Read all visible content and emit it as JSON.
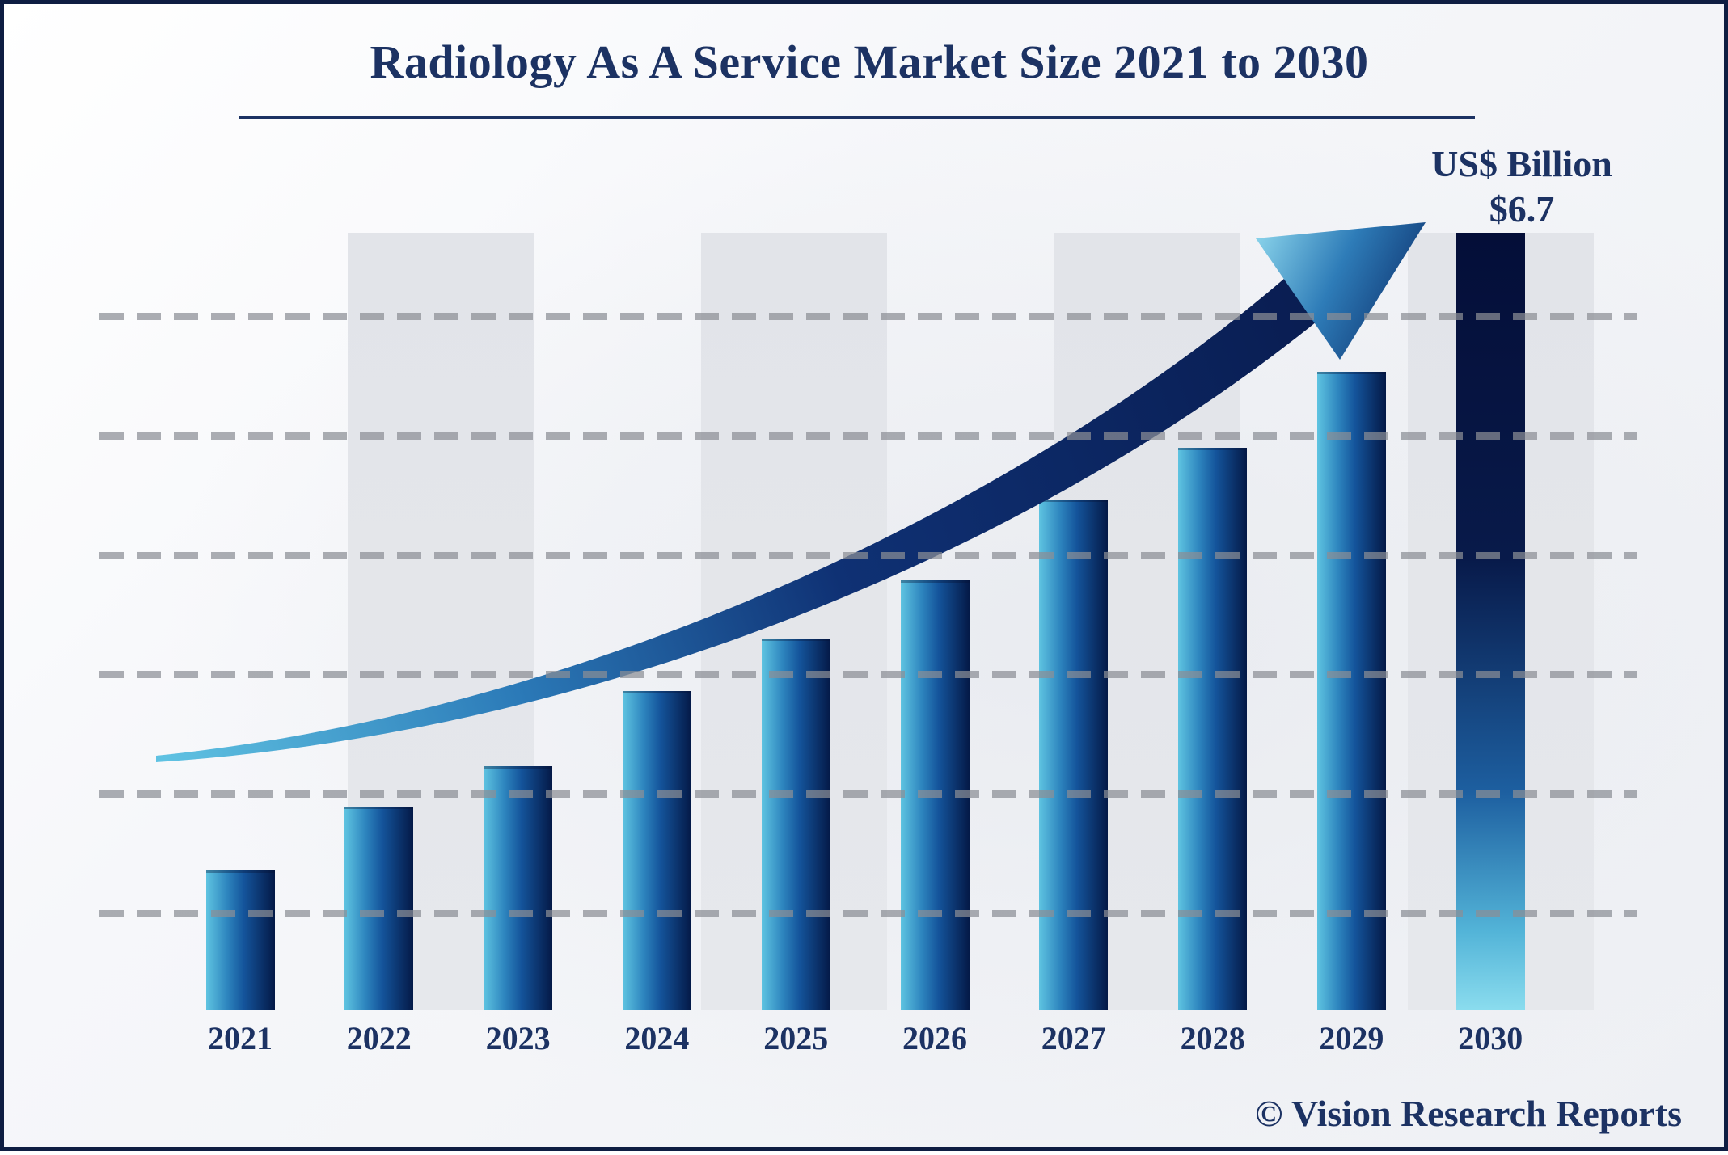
{
  "header": {
    "title": "Radiology As A Service Market Size 2021 to 2030"
  },
  "unit_label": {
    "line1": "US$ Billion",
    "line2": "$6.7"
  },
  "watermark": "© Vision Research Reports",
  "chart_data": {
    "type": "bar",
    "title": "Radiology As A Service Market Size 2021 to 2030",
    "unit": "US$ Billion",
    "categories": [
      "2021",
      "2022",
      "2023",
      "2024",
      "2025",
      "2026",
      "2027",
      "2028",
      "2029",
      "2030"
    ],
    "values": [
      1.2,
      1.75,
      2.1,
      2.75,
      3.2,
      3.7,
      4.4,
      4.85,
      5.5,
      6.7
    ],
    "labeled_points": [
      {
        "category": "2030",
        "label": "$6.7"
      }
    ],
    "value_note": "Only the 2030 bar is labeled ($6.7); other values are visual estimates from bar heights",
    "xlabel": "",
    "ylabel": "US$ Billion",
    "ylim": [
      0,
      7
    ],
    "grid": "horizontal dashed gray lines, no y-axis tick labels",
    "legend": "none",
    "annotations": [
      "upward curved trend arrow from 2021 toward 2030 value label"
    ],
    "colors": {
      "bar_gradient_left": "#5fc4e1",
      "bar_gradient_mid": "#14549b",
      "bar_gradient_right": "#041947",
      "final_bar_top": "#040e38",
      "final_bar_bottom": "#8adcee",
      "arrow_dark": "#0a1c55",
      "arrow_light": "#5fc2e2",
      "text_navy": "#1c3263",
      "gridline_gray": "#a7a9ae",
      "band_gray": "#e4e6ea",
      "border_navy": "#0e1d42"
    }
  }
}
